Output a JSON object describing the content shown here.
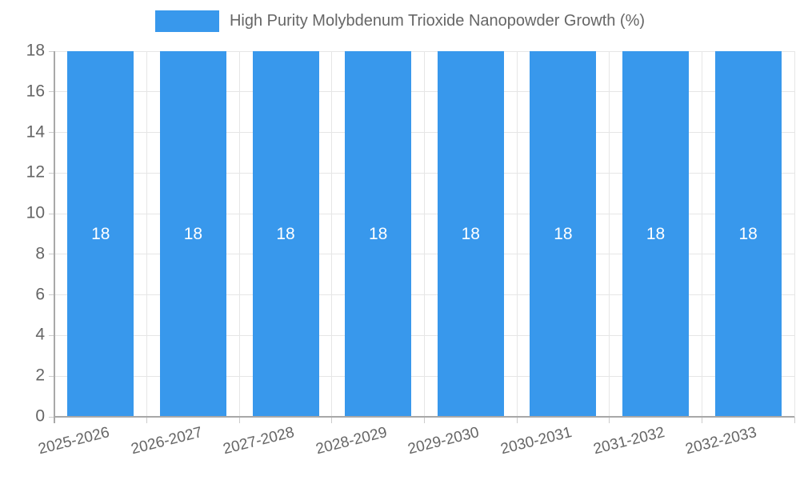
{
  "chart_data": {
    "type": "bar",
    "title": "High Purity Molybdenum Trioxide Nanopowder Growth (%)",
    "categories": [
      "2025-2026",
      "2026-2027",
      "2027-2028",
      "2028-2029",
      "2029-2030",
      "2030-2031",
      "2031-2032",
      "2032-2033"
    ],
    "values": [
      18,
      18,
      18,
      18,
      18,
      18,
      18,
      18
    ],
    "data_labels": [
      "18",
      "18",
      "18",
      "18",
      "18",
      "18",
      "18",
      "18"
    ],
    "xlabel": "",
    "ylabel": "",
    "ylim": [
      0,
      18
    ],
    "yticks": [
      0,
      2,
      4,
      6,
      8,
      10,
      12,
      14,
      16,
      18
    ],
    "grid": true,
    "legend_position": "top",
    "x_tick_rotation_deg": -14,
    "colors": {
      "bar": "#3898ec",
      "bar_label": "#ffffff",
      "grid": "#e6e6e6",
      "axis": "#a8a8a8",
      "tick_mark": "#cccccc",
      "tick_text": "#666666",
      "legend_text": "#666666",
      "background": "#ffffff"
    }
  }
}
